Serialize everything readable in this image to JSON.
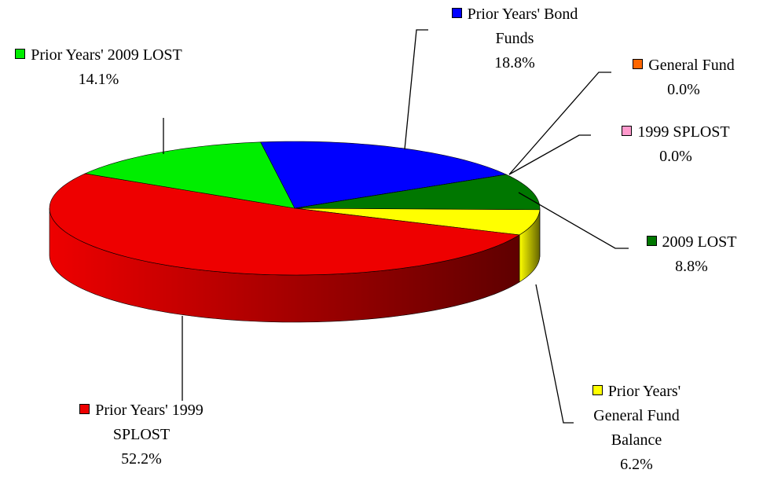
{
  "chart_data": {
    "type": "pie3d",
    "categories": [
      "Prior Years' Bond Funds",
      "General Fund",
      "1999 SPLOST",
      "2009 LOST",
      "Prior Years' General Fund Balance",
      "Prior Years' 1999 SPLOST",
      "Prior Years' 2009 LOST"
    ],
    "values": [
      18.8,
      0.0,
      0.0,
      8.8,
      6.2,
      52.2,
      14.1
    ],
    "value_labels": [
      "18.8%",
      "0.0%",
      "0.0%",
      "8.8%",
      "6.2%",
      "52.2%",
      "14.1%"
    ],
    "colors": [
      "#0000ff",
      "#ff6600",
      "#ff99cc",
      "#007700",
      "#ffff00",
      "#ee0000",
      "#00ee00"
    ]
  }
}
